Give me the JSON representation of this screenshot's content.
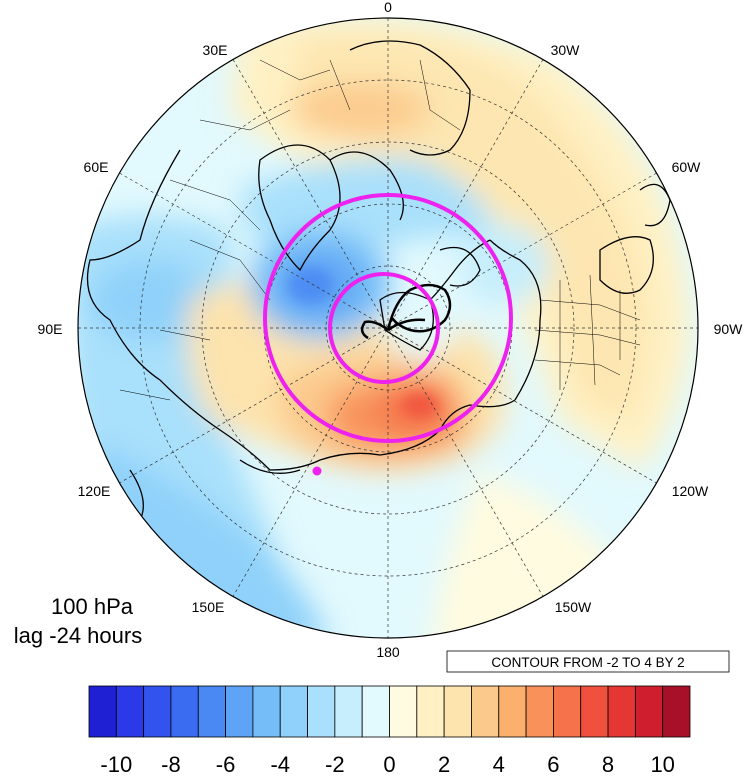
{
  "map": {
    "projection": "north-polar-stereographic",
    "plot_type": "filled-contour",
    "longitude_labels": [
      "0",
      "30W",
      "60W",
      "90W",
      "120W",
      "150W",
      "180",
      "150E",
      "120E",
      "90E",
      "60E",
      "30E"
    ],
    "level_label": "100 hPa",
    "lag_label": "lag -24 hours",
    "contour_info": "CONTOUR FROM -2 TO 4 BY 2",
    "trajectory_color": "#ee22ee",
    "marker_color": "#ee22ee"
  },
  "colorbar": {
    "tick_labels": [
      "-10",
      "-8",
      "-6",
      "-4",
      "-2",
      "0",
      "2",
      "4",
      "6",
      "8",
      "10"
    ],
    "colors": [
      "#1f1fd4",
      "#2b39e8",
      "#3253ee",
      "#3a6cf2",
      "#4a88f3",
      "#5ea3f5",
      "#74bdf8",
      "#8fd1fa",
      "#a9e0fb",
      "#c6eefc",
      "#e2f9fd",
      "#fffbe0",
      "#fff1c4",
      "#fde3ad",
      "#fcc98c",
      "#fbb06e",
      "#f8925a",
      "#f5724b",
      "#f0513e",
      "#e43633",
      "#cf1f2f",
      "#a8102a"
    ]
  }
}
